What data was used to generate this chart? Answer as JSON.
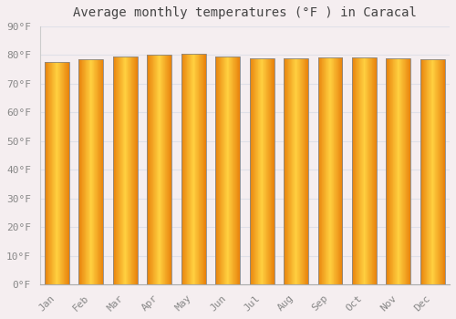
{
  "title": "Average monthly temperatures (°F ) in Caracal",
  "months": [
    "Jan",
    "Feb",
    "Mar",
    "Apr",
    "May",
    "Jun",
    "Jul",
    "Aug",
    "Sep",
    "Oct",
    "Nov",
    "Dec"
  ],
  "values": [
    77.5,
    78.5,
    79.5,
    80.2,
    80.5,
    79.5,
    79.0,
    79.0,
    79.2,
    79.2,
    79.0,
    78.5
  ],
  "bar_color_left": "#E8820C",
  "bar_color_center": "#FFD040",
  "bar_color_right": "#E8820C",
  "bar_edge_color": "#888888",
  "background_color": "#f5eef0",
  "plot_bg_color": "#f5eef0",
  "grid_color": "#e0e0e8",
  "text_color": "#888888",
  "title_color": "#444444",
  "ylim": [
    0,
    90
  ],
  "yticks": [
    0,
    10,
    20,
    30,
    40,
    50,
    60,
    70,
    80,
    90
  ],
  "ytick_labels": [
    "0°F",
    "10°F",
    "20°F",
    "30°F",
    "40°F",
    "50°F",
    "60°F",
    "70°F",
    "80°F",
    "90°F"
  ],
  "title_fontsize": 10,
  "tick_fontsize": 8,
  "font_family": "monospace",
  "bar_width": 0.72
}
